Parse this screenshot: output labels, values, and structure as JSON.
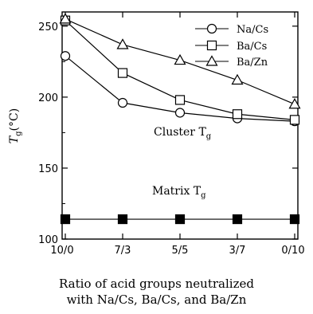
{
  "chart_data": {
    "type": "line",
    "categories": [
      "10/0",
      "7/3",
      "5/5",
      "3/7",
      "0/10"
    ],
    "ylim": [
      100,
      260
    ],
    "yticks": [
      "100",
      "150",
      "200",
      "250"
    ],
    "ylabel_main": "T",
    "ylabel_sub": "g",
    "ylabel_unit": "(°C)",
    "xlabel_line1": "Ratio of acid groups neutralized",
    "xlabel_line2": "with Na/Cs, Ba/Cs, and Ba/Zn",
    "legend_position": "top-right",
    "annotations": [
      {
        "main": "Cluster T",
        "sub": "g"
      },
      {
        "main": "Matrix T",
        "sub": "g"
      }
    ],
    "series": [
      {
        "name": "Na/Cs",
        "marker": "circle",
        "values": [
          229,
          196,
          189,
          185,
          183
        ]
      },
      {
        "name": "Ba/Cs",
        "marker": "square",
        "values": [
          254,
          217,
          198,
          188,
          184
        ]
      },
      {
        "name": "Ba/Zn",
        "marker": "triangle",
        "values": [
          255,
          237,
          226,
          212,
          195
        ]
      },
      {
        "name": "",
        "marker": "filled-square",
        "values": [
          114,
          114,
          114,
          114,
          114
        ]
      }
    ]
  }
}
